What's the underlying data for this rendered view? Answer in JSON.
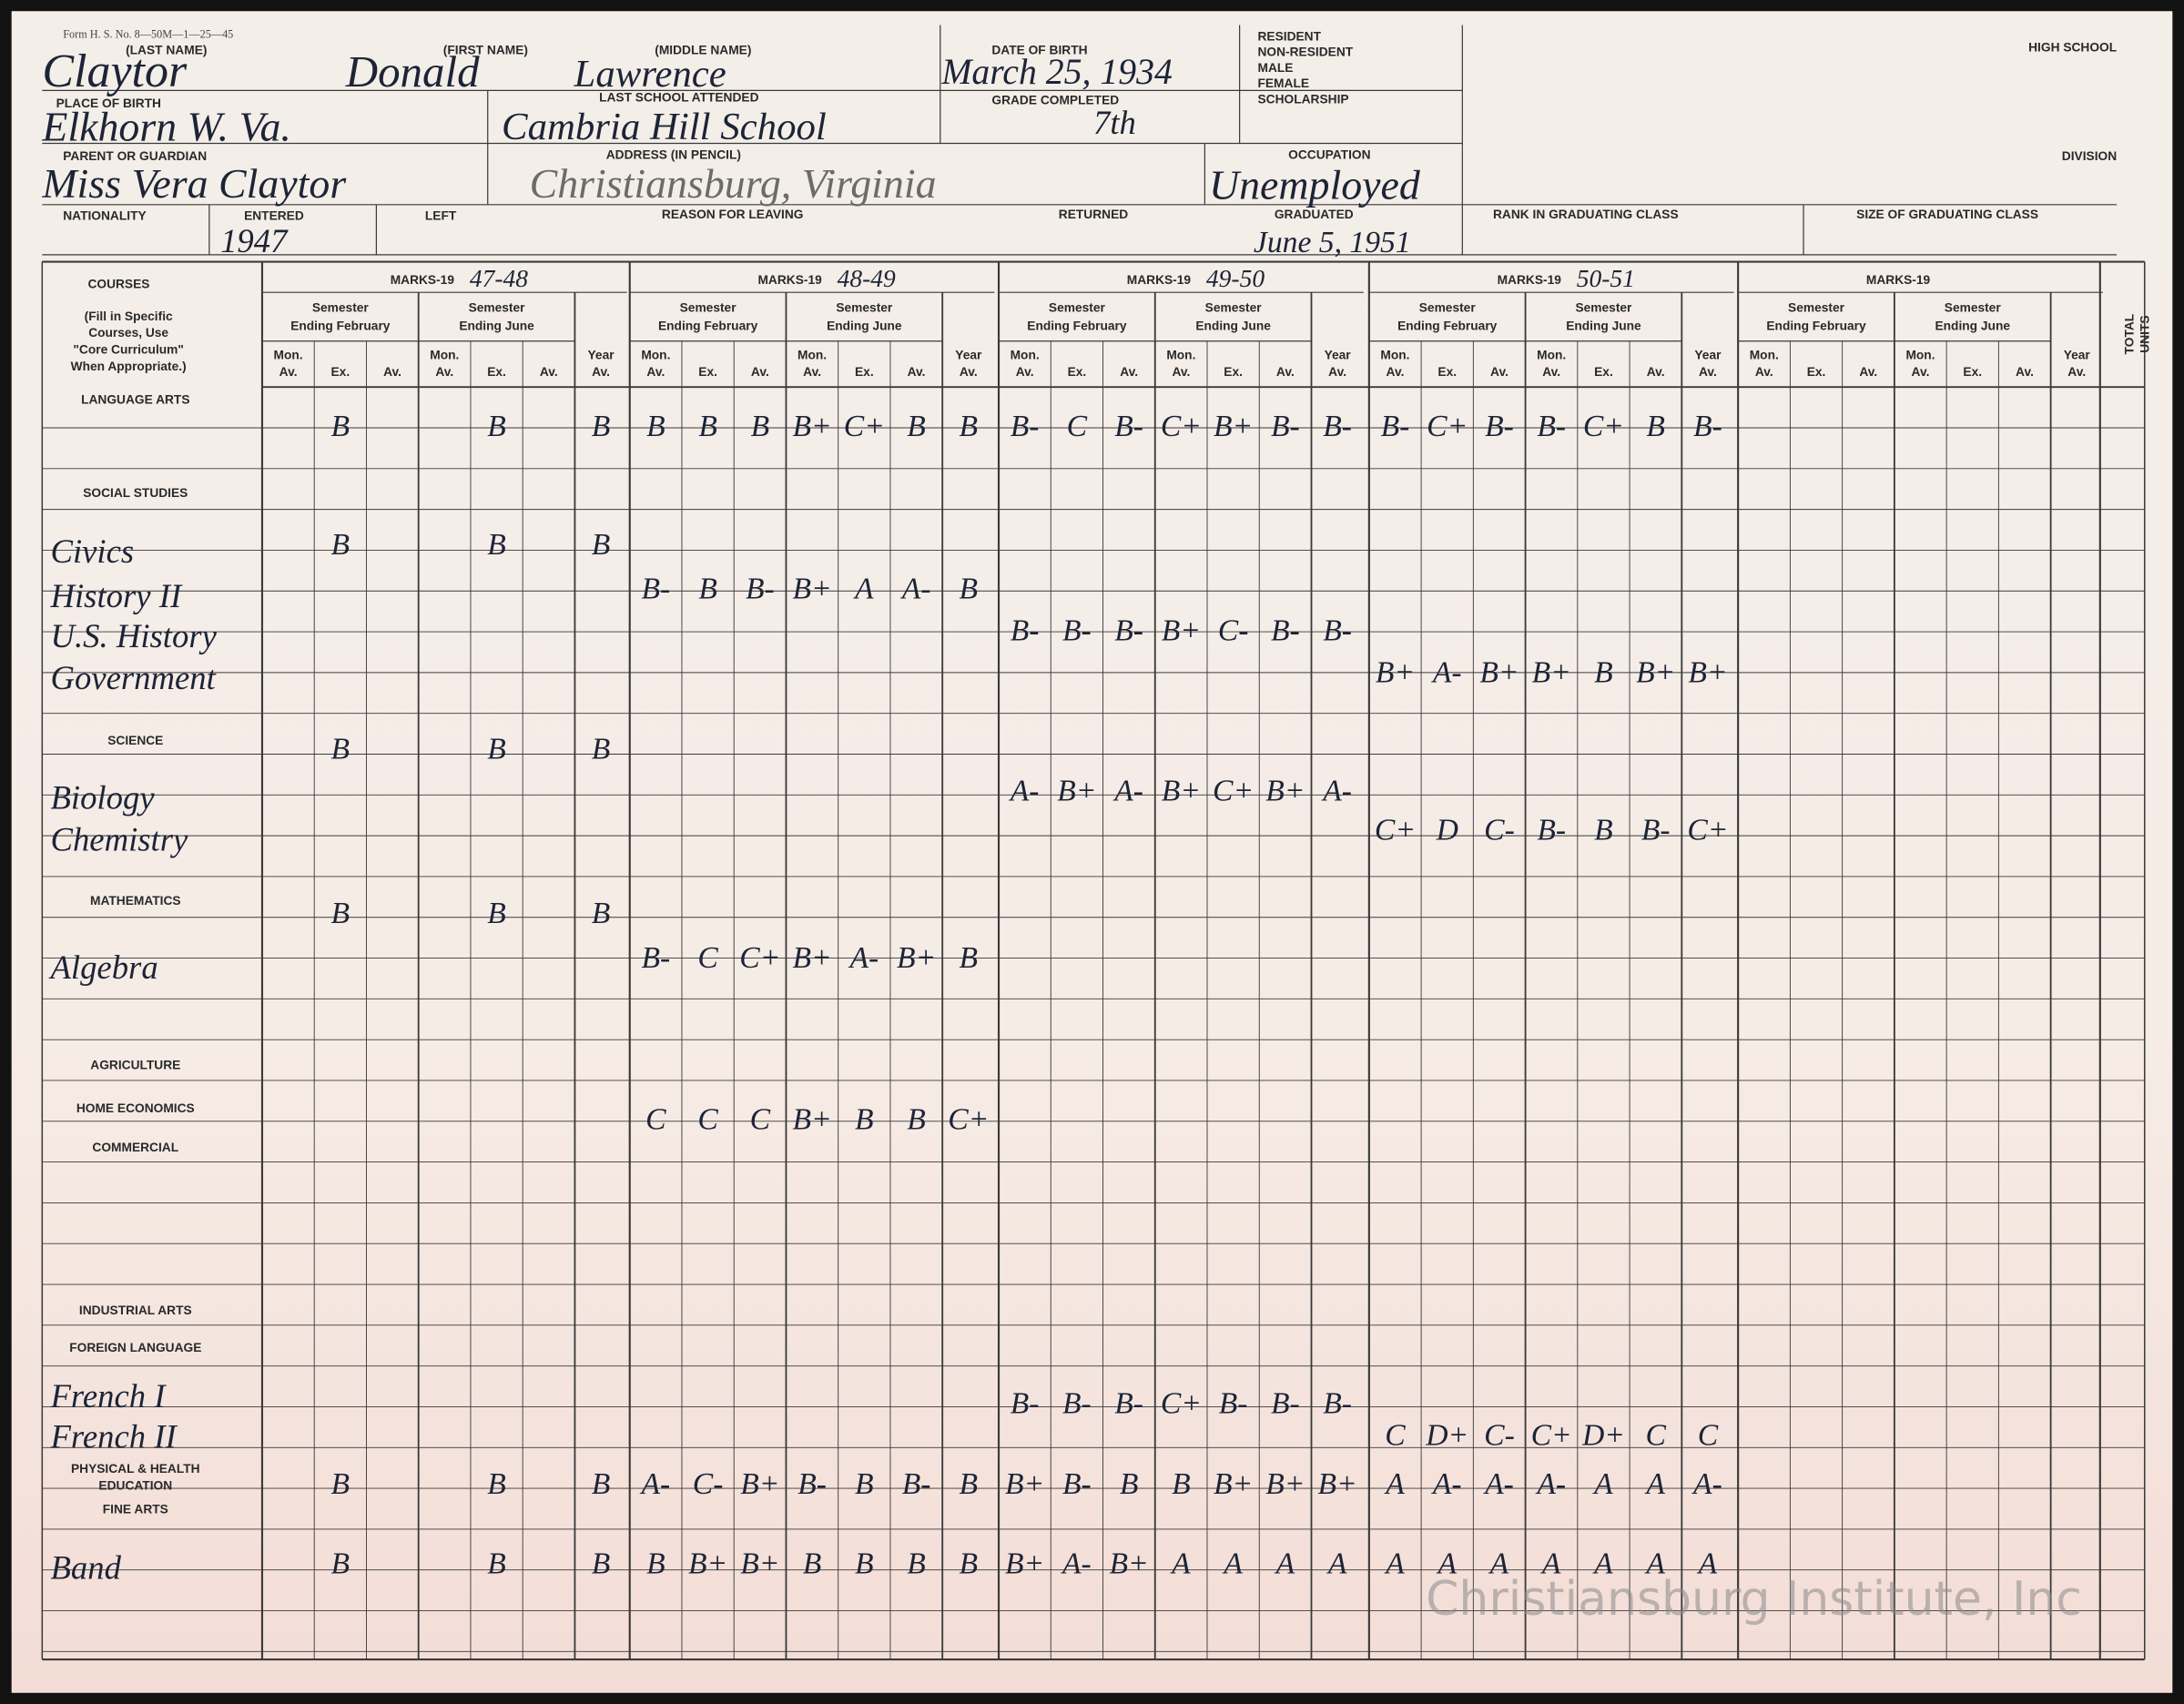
{
  "form_number": "Form H. S. No. 8—50M—1—25—45",
  "header": {
    "last_name": {
      "label": "(LAST NAME)",
      "value": "Claytor"
    },
    "first_name": {
      "label": "(FIRST NAME)",
      "value": "Donald"
    },
    "middle_name": {
      "label": "(MIDDLE NAME)",
      "value": "Lawrence"
    },
    "date_of_birth": {
      "label": "DATE OF BIRTH",
      "value": "March 25, 1934"
    },
    "place_of_birth": {
      "label": "PLACE OF BIRTH",
      "value": "Elkhorn W. Va."
    },
    "last_school": {
      "label": "LAST SCHOOL ATTENDED",
      "value": "Cambria Hill School"
    },
    "grade_completed": {
      "label": "GRADE COMPLETED",
      "value": "7th"
    },
    "parent": {
      "label": "PARENT OR GUARDIAN",
      "value": "Miss Vera Claytor"
    },
    "address": {
      "label": "ADDRESS (IN PENCIL)",
      "value": "Christiansburg, Virginia"
    },
    "occupation": {
      "label": "OCCUPATION",
      "value": "Unemployed"
    },
    "nationality": {
      "label": "NATIONALITY"
    },
    "entered": {
      "label": "ENTERED",
      "value": "1947"
    },
    "left": {
      "label": "LEFT"
    },
    "reason": {
      "label": "REASON FOR LEAVING"
    },
    "returned": {
      "label": "RETURNED"
    },
    "graduated": {
      "label": "GRADUATED",
      "value": "June 5, 1951"
    },
    "rank": {
      "label": "RANK IN GRADUATING CLASS"
    },
    "size": {
      "label": "SIZE OF GRADUATING CLASS"
    }
  },
  "status": [
    "RESIDENT",
    "NON-RESIDENT",
    "MALE",
    "FEMALE",
    "SCHOLARSHIP"
  ],
  "high_school": "HIGH SCHOOL",
  "division": "DIVISION",
  "table": {
    "courses_heading": "COURSES",
    "courses_note": [
      "(Fill in Specific",
      "Courses, Use",
      "\"Core Curriculum\"",
      "When Appropriate.)"
    ],
    "marks_prefix": "MARKS-19",
    "years": [
      "47-48",
      "48-49",
      "49-50",
      "50-51",
      null
    ],
    "semester_february": [
      "Semester",
      "Ending February"
    ],
    "semester_june": [
      "Semester",
      "Ending June"
    ],
    "mon_av": [
      "Mon.",
      "Av."
    ],
    "ex": "Ex.",
    "av": "Av.",
    "year_av": [
      "Year",
      "Av."
    ],
    "total_units": [
      "TOTAL",
      "UNITS"
    ],
    "rows": [
      {
        "label": "LANGUAGE ARTS",
        "marks": [
          [
            null,
            "B",
            null,
            null,
            "B",
            null,
            "B"
          ],
          [
            "B",
            "B",
            "B",
            "B+",
            "C+",
            "B",
            "B"
          ],
          [
            "B-",
            "C",
            "B-",
            "C+",
            "B+",
            "B-",
            "B-"
          ],
          [
            "B-",
            "C+",
            "B-",
            "B-",
            "C+",
            "B",
            "B-"
          ]
        ]
      },
      {
        "label": "SOCIAL STUDIES"
      },
      {
        "label": "Civics",
        "marks": [
          [
            null,
            "B",
            null,
            null,
            "B",
            null,
            "B"
          ],
          null,
          null,
          null
        ]
      },
      {
        "label": "History II",
        "marks": [
          null,
          [
            "B-",
            "B",
            "B-",
            "B+",
            "A",
            "A-",
            "B"
          ],
          null,
          null
        ]
      },
      {
        "label": "U.S. History",
        "marks": [
          null,
          null,
          [
            "B-",
            "B-",
            "B-",
            "B+",
            "C-",
            "B-",
            "B-"
          ],
          null
        ]
      },
      {
        "label": "Government",
        "marks": [
          null,
          null,
          null,
          [
            "B+",
            "A-",
            "B+",
            "B+",
            "B",
            "B+",
            "B+"
          ]
        ]
      },
      {
        "label": "SCIENCE",
        "marks": [
          [
            null,
            "B",
            null,
            null,
            "B",
            null,
            "B"
          ],
          null,
          null,
          null
        ]
      },
      {
        "label": "Biology",
        "marks": [
          null,
          null,
          [
            "A-",
            "B+",
            "A-",
            "B+",
            "C+",
            "B+",
            "A-"
          ],
          null
        ]
      },
      {
        "label": "Chemistry",
        "marks": [
          null,
          null,
          null,
          [
            "C+",
            "D",
            "C-",
            "B-",
            "B",
            "B-",
            "C+"
          ]
        ]
      },
      {
        "label": "MATHEMATICS",
        "marks": [
          [
            null,
            "B",
            null,
            null,
            "B",
            null,
            "B"
          ],
          null,
          null,
          null
        ]
      },
      {
        "label": "Algebra",
        "marks": [
          null,
          [
            "B-",
            "C",
            "C+",
            "B+",
            "A-",
            "B+",
            "B"
          ],
          null,
          null
        ]
      },
      {
        "label": "AGRICULTURE"
      },
      {
        "label": "HOME ECONOMICS",
        "marks": [
          null,
          [
            "C",
            "C",
            "C",
            "B+",
            "B",
            "B",
            "C+"
          ],
          null,
          null
        ]
      },
      {
        "label": "COMMERCIAL"
      },
      {
        "label": "INDUSTRIAL ARTS"
      },
      {
        "label": "FOREIGN LANGUAGE"
      },
      {
        "label": "French I",
        "marks": [
          null,
          null,
          [
            "B-",
            "B-",
            "B-",
            "C+",
            "B-",
            "B-",
            "B-"
          ],
          null
        ]
      },
      {
        "label": "French II",
        "marks": [
          null,
          null,
          null,
          [
            "C",
            "D+",
            "C-",
            "C+",
            "D+",
            "C",
            "C"
          ]
        ]
      },
      {
        "label": [
          "PHYSICAL & HEALTH",
          "EDUCATION"
        ],
        "marks": [
          [
            null,
            "B",
            null,
            null,
            "B",
            null,
            "B"
          ],
          [
            "A-",
            "C-",
            "B+",
            "B-",
            "B",
            "B-",
            "B"
          ],
          [
            "B+",
            "B-",
            "B",
            "B",
            "B+",
            "B+",
            "B+"
          ],
          [
            "A",
            "A-",
            "A-",
            "A-",
            "A",
            "A",
            "A-"
          ]
        ]
      },
      {
        "label": "FINE ARTS"
      },
      {
        "label": "Band",
        "marks": [
          [
            null,
            "B",
            null,
            null,
            "B",
            null,
            "B"
          ],
          [
            "B",
            "B+",
            "B+",
            "B",
            "B",
            "B",
            "B"
          ],
          [
            "B+",
            "A-",
            "B+",
            "A",
            "A",
            "A",
            "A"
          ],
          [
            "A",
            "A",
            "A",
            "A",
            "A",
            "A",
            "A"
          ]
        ]
      }
    ]
  },
  "watermark": "Christiansburg Institute, Inc"
}
